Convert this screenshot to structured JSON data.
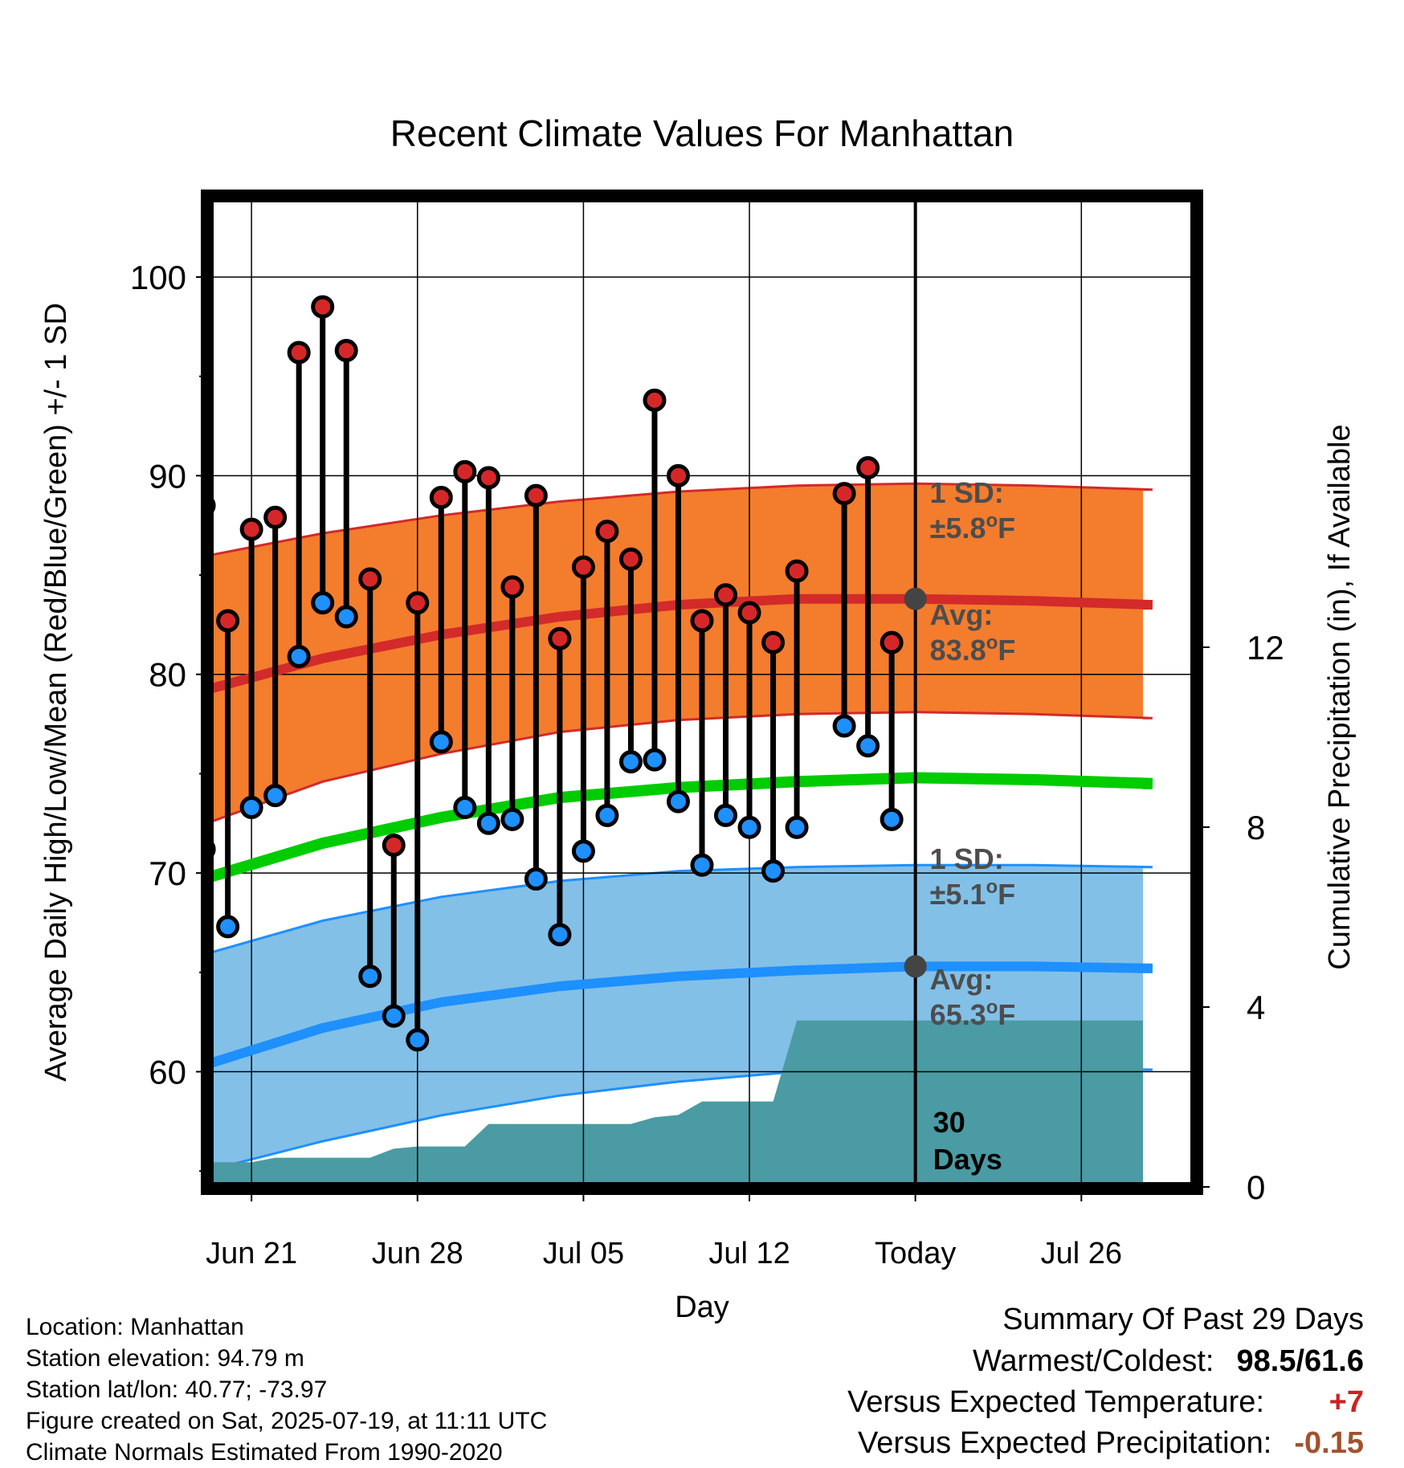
{
  "chart_data": {
    "type": "line",
    "title": "Recent Climate Values For Manhattan",
    "xlabel": "Day",
    "ylabel": "Average Daily High/Low/Mean (Red/Blue/Green) +/- 1 SD",
    "y2label": "Cumulative Precipitation (in), If Available",
    "ylim": [
      54.2,
      104
    ],
    "y2lim": [
      0,
      22
    ],
    "xlim": [
      -29.8,
      11.8
    ],
    "x_axis_unit": "days relative to today (2025-07-19)",
    "x_tick_labels": [
      {
        "day": -28,
        "label": "Jun 21"
      },
      {
        "day": -21,
        "label": "Jun 28"
      },
      {
        "day": -14,
        "label": "Jul 05"
      },
      {
        "day": -7,
        "label": "Jul 12"
      },
      {
        "day": 0,
        "label": "Today"
      },
      {
        "day": 7,
        "label": "Jul 26"
      }
    ],
    "y_ticks": [
      60,
      70,
      80,
      90,
      100
    ],
    "y2_ticks": [
      0,
      4,
      8,
      12
    ],
    "daily_obs": [
      {
        "day": -30,
        "high": 88.5,
        "low": 71.2
      },
      {
        "day": -29,
        "high": 82.7,
        "low": 67.3
      },
      {
        "day": -28,
        "high": 87.3,
        "low": 73.3
      },
      {
        "day": -27,
        "high": 87.9,
        "low": 73.9
      },
      {
        "day": -26,
        "high": 96.2,
        "low": 80.9
      },
      {
        "day": -25,
        "high": 98.5,
        "low": 83.6
      },
      {
        "day": -24,
        "high": 96.3,
        "low": 82.9
      },
      {
        "day": -23,
        "high": 84.8,
        "low": 64.8
      },
      {
        "day": -22,
        "high": 71.4,
        "low": 62.8
      },
      {
        "day": -21,
        "high": 83.6,
        "low": 61.6
      },
      {
        "day": -20,
        "high": 88.9,
        "low": 76.6
      },
      {
        "day": -19,
        "high": 90.2,
        "low": 73.3
      },
      {
        "day": -18,
        "high": 89.9,
        "low": 72.5
      },
      {
        "day": -17,
        "high": 84.4,
        "low": 72.7
      },
      {
        "day": -16,
        "high": 89.0,
        "low": 69.7
      },
      {
        "day": -15,
        "high": 81.8,
        "low": 66.9
      },
      {
        "day": -14,
        "high": 85.4,
        "low": 71.1
      },
      {
        "day": -13,
        "high": 87.2,
        "low": 72.9
      },
      {
        "day": -12,
        "high": 85.8,
        "low": 75.6
      },
      {
        "day": -11,
        "high": 93.8,
        "low": 75.7
      },
      {
        "day": -10,
        "high": 90.0,
        "low": 73.6
      },
      {
        "day": -9,
        "high": 82.7,
        "low": 70.4
      },
      {
        "day": -8,
        "high": 84.0,
        "low": 72.9
      },
      {
        "day": -7,
        "high": 83.1,
        "low": 72.3
      },
      {
        "day": -6,
        "high": 81.6,
        "low": 70.1
      },
      {
        "day": -5,
        "high": 85.2,
        "low": 72.3
      },
      {
        "day": -3,
        "high": 89.1,
        "low": 77.4
      },
      {
        "day": -2,
        "high": 90.4,
        "low": 76.4
      },
      {
        "day": -1,
        "high": 81.6,
        "low": 72.7
      }
    ],
    "normals": {
      "day": [
        -30.6,
        -25,
        -20,
        -15,
        -10,
        -5,
        0,
        5,
        10,
        9.6
      ],
      "high_avg": [
        79.0,
        80.8,
        82.0,
        82.9,
        83.5,
        83.8,
        83.8,
        83.7,
        83.5,
        83.5
      ],
      "high_upper": [
        85.8,
        87.1,
        88.0,
        88.7,
        89.2,
        89.5,
        89.6,
        89.5,
        89.3,
        89.3
      ],
      "high_lower": [
        72.2,
        74.6,
        76.0,
        77.1,
        77.7,
        78.0,
        78.1,
        78.0,
        77.8,
        77.8
      ],
      "mean_avg": [
        69.5,
        71.5,
        72.8,
        73.8,
        74.3,
        74.6,
        74.8,
        74.7,
        74.5,
        74.5
      ],
      "low_avg": [
        60.1,
        62.2,
        63.5,
        64.3,
        64.8,
        65.1,
        65.3,
        65.3,
        65.2,
        65.2
      ],
      "low_upper": [
        65.7,
        67.6,
        68.8,
        69.6,
        70.1,
        70.3,
        70.4,
        70.4,
        70.3,
        70.3
      ],
      "low_lower": [
        54.8,
        56.5,
        57.8,
        58.8,
        59.5,
        60.0,
        60.2,
        60.2,
        60.1,
        60.1
      ]
    },
    "precip": {
      "day": [
        -30.6,
        -30.0,
        -28.0,
        -27.0,
        -23.0,
        -22.0,
        -21.0,
        -19.0,
        -18.0,
        -12.0,
        -11.0,
        -10.0,
        -9.0,
        -6.0,
        -5.0,
        9.6
      ],
      "cum": [
        0.0,
        0.55,
        0.55,
        0.65,
        0.65,
        0.85,
        0.9,
        0.9,
        1.4,
        1.4,
        1.55,
        1.6,
        1.9,
        1.9,
        3.7,
        3.7
      ]
    },
    "annotations": {
      "high_sd": [
        "1 SD:",
        "±5.8",
        "F"
      ],
      "high_avg": [
        "Avg:",
        "83.8",
        "F"
      ],
      "low_sd": [
        "1 SD:",
        "±5.1",
        "F"
      ],
      "low_avg": [
        "Avg:",
        "65.3",
        "F"
      ],
      "degree": "o",
      "window": [
        "30",
        "Days"
      ]
    },
    "colors": {
      "high_band": "#f47c2d",
      "high_line": "#d32a2a",
      "mean_line": "#00cc00",
      "low_band": "#82c0e8",
      "low_line": "#1e90ff",
      "precip": "#4a9ba3",
      "high_dot": "#d62728",
      "low_dot": "#1e90ff",
      "annot": "#4d4d4d",
      "today_dot": "#444444"
    }
  },
  "footer": {
    "location": "Location: Manhattan",
    "elevation": "Station elevation: 94.79 m",
    "latlon": "Station lat/lon: 40.77; -73.97",
    "created": "Figure created on Sat, 2025-07-19, at 11:11 UTC",
    "normals": "Climate Normals Estimated From 1990-2020"
  },
  "summary": {
    "title": "Summary Of Past 29 Days",
    "warm_cold_label": "Warmest/Coldest:",
    "warm_value": "98.5",
    "slash": "/",
    "cold_value": "61.6",
    "temp_label": "Versus Expected Temperature:",
    "temp_value": "+7",
    "temp_color": "#cc2222",
    "precip_label": "Versus Expected Precipitation:",
    "precip_value": "-0.15",
    "precip_color": "#a0522d"
  }
}
